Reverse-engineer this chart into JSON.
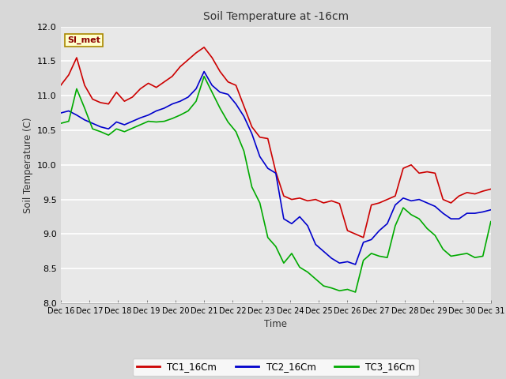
{
  "title": "Soil Temperature at -16cm",
  "xlabel": "Time",
  "ylabel": "Soil Temperature (C)",
  "ylim": [
    8.0,
    12.0
  ],
  "yticks": [
    8.0,
    8.5,
    9.0,
    9.5,
    10.0,
    10.5,
    11.0,
    11.5,
    12.0
  ],
  "xtick_labels": [
    "Dec 16",
    "Dec 17",
    "Dec 18",
    "Dec 19",
    "Dec 20",
    "Dec 21",
    "Dec 22",
    "Dec 23",
    "Dec 24",
    "Dec 25",
    "Dec 26",
    "Dec 27",
    "Dec 28",
    "Dec 29",
    "Dec 30",
    "Dec 31"
  ],
  "fig_bg_color": "#d8d8d8",
  "plot_bg_color": "#e8e8e8",
  "grid_color": "#ffffff",
  "legend_label": "SI_met",
  "series": {
    "TC1_16Cm": {
      "color": "#cc0000",
      "values": [
        11.15,
        11.3,
        11.55,
        11.15,
        10.95,
        10.9,
        10.88,
        11.05,
        10.92,
        10.98,
        11.1,
        11.18,
        11.12,
        11.2,
        11.28,
        11.42,
        11.52,
        11.62,
        11.7,
        11.55,
        11.35,
        11.2,
        11.15,
        10.85,
        10.55,
        10.4,
        10.38,
        9.9,
        9.55,
        9.5,
        9.52,
        9.48,
        9.5,
        9.45,
        9.48,
        9.44,
        9.05,
        9.0,
        8.95,
        9.42,
        9.45,
        9.5,
        9.55,
        9.95,
        10.0,
        9.88,
        9.9,
        9.88,
        9.5,
        9.45,
        9.55,
        9.6,
        9.58,
        9.62,
        9.65
      ]
    },
    "TC2_16Cm": {
      "color": "#0000cc",
      "values": [
        10.75,
        10.78,
        10.72,
        10.65,
        10.6,
        10.55,
        10.52,
        10.62,
        10.58,
        10.63,
        10.68,
        10.72,
        10.78,
        10.82,
        10.88,
        10.92,
        10.98,
        11.1,
        11.35,
        11.15,
        11.05,
        11.02,
        10.88,
        10.7,
        10.45,
        10.12,
        9.95,
        9.88,
        9.22,
        9.15,
        9.25,
        9.12,
        8.85,
        8.75,
        8.65,
        8.58,
        8.6,
        8.56,
        8.88,
        8.92,
        9.05,
        9.15,
        9.42,
        9.52,
        9.48,
        9.5,
        9.45,
        9.4,
        9.3,
        9.22,
        9.22,
        9.3,
        9.3,
        9.32,
        9.35
      ]
    },
    "TC3_16Cm": {
      "color": "#00aa00",
      "values": [
        10.6,
        10.63,
        11.1,
        10.82,
        10.52,
        10.48,
        10.43,
        10.52,
        10.48,
        10.53,
        10.58,
        10.63,
        10.62,
        10.63,
        10.67,
        10.72,
        10.78,
        10.92,
        11.28,
        11.05,
        10.82,
        10.62,
        10.48,
        10.2,
        9.68,
        9.45,
        8.95,
        8.82,
        8.58,
        8.72,
        8.52,
        8.45,
        8.35,
        8.25,
        8.22,
        8.18,
        8.2,
        8.16,
        8.62,
        8.72,
        8.68,
        8.66,
        9.12,
        9.38,
        9.28,
        9.22,
        9.08,
        8.98,
        8.78,
        8.68,
        8.7,
        8.72,
        8.66,
        8.68,
        9.18
      ]
    }
  }
}
